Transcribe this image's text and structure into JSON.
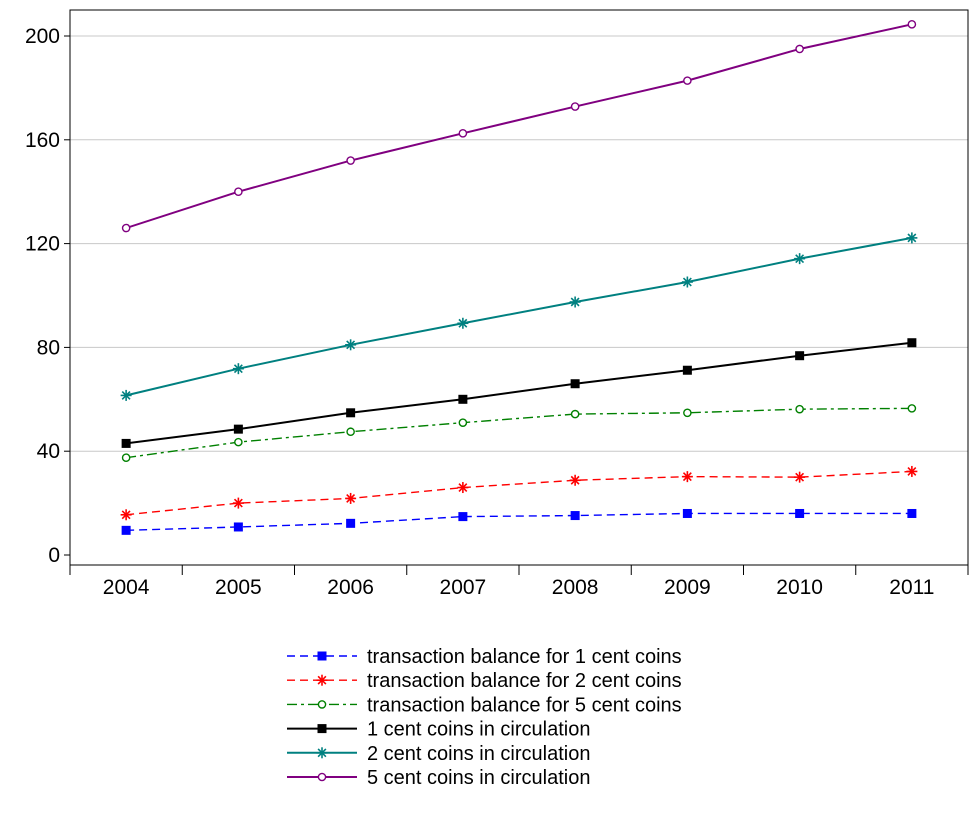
{
  "chart_data": {
    "type": "line",
    "categories": [
      "2004",
      "2005",
      "2006",
      "2007",
      "2008",
      "2009",
      "2010",
      "2011"
    ],
    "ylim": [
      0,
      210
    ],
    "yticks": [
      0,
      40,
      80,
      120,
      160,
      200
    ],
    "ytick_labels": [
      "0",
      "40",
      "80",
      "120",
      "160",
      "200"
    ],
    "grid": true,
    "legend_position": "bottom-center",
    "series": [
      {
        "name": "transaction balance for 1 cent coins",
        "color": "#0000ff",
        "line_style": "dashed",
        "marker": "square",
        "values": [
          9.5,
          10.8,
          12.2,
          14.8,
          15.2,
          16.0,
          16.0,
          16.0
        ]
      },
      {
        "name": "transaction balance for 2 cent coins",
        "color": "#ff0000",
        "line_style": "dashed",
        "marker": "asterisk",
        "values": [
          15.5,
          20.0,
          21.8,
          26.0,
          28.8,
          30.2,
          30.0,
          32.2
        ]
      },
      {
        "name": "transaction balance for 5 cent coins",
        "color": "#008000",
        "line_style": "dashdot",
        "marker": "circle",
        "values": [
          37.5,
          43.5,
          47.5,
          51.0,
          54.3,
          54.8,
          56.2,
          56.5
        ]
      },
      {
        "name": "1 cent coins in circulation",
        "color": "#000000",
        "line_style": "solid",
        "marker": "square",
        "values": [
          43.0,
          48.5,
          54.8,
          60.0,
          66.0,
          71.2,
          76.8,
          81.8
        ]
      },
      {
        "name": "2 cent coins in circulation",
        "color": "#008080",
        "line_style": "solid",
        "marker": "asterisk",
        "values": [
          61.5,
          71.8,
          81.0,
          89.3,
          97.5,
          105.2,
          114.2,
          122.2
        ]
      },
      {
        "name": "5 cent coins in circulation",
        "color": "#800080",
        "line_style": "solid",
        "marker": "circle",
        "values": [
          126.0,
          140.0,
          152.0,
          162.5,
          172.8,
          182.8,
          195.0,
          204.5
        ]
      }
    ]
  }
}
